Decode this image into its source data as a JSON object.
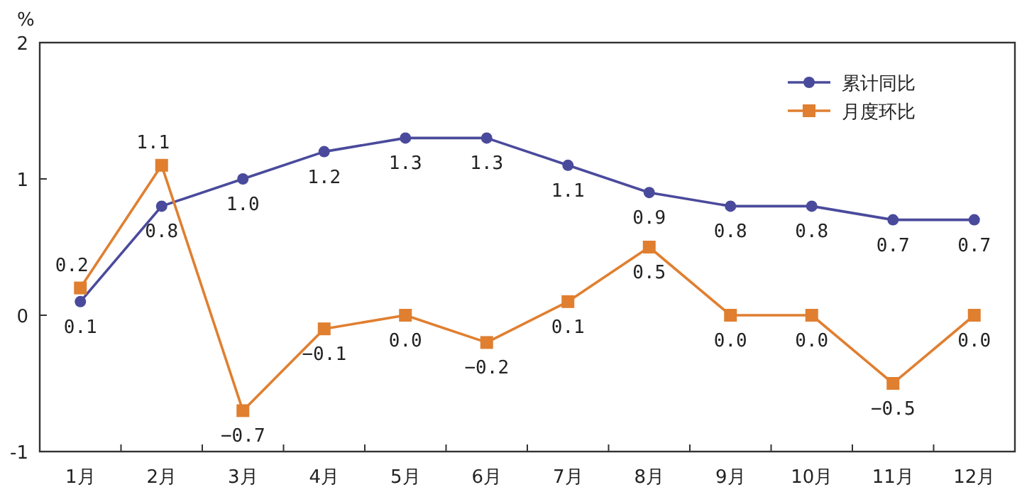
{
  "chart_data": {
    "type": "line",
    "ylabel": "%",
    "categories": [
      "1月",
      "2月",
      "3月",
      "4月",
      "5月",
      "6月",
      "7月",
      "8月",
      "9月",
      "10月",
      "11月",
      "12月"
    ],
    "series": [
      {
        "name": "累计同比",
        "color": "#4a4a9c",
        "marker": "circle",
        "values": [
          0.1,
          0.8,
          1.0,
          1.2,
          1.3,
          1.3,
          1.1,
          0.9,
          0.8,
          0.8,
          0.7,
          0.7
        ],
        "value_labels": [
          "0.1",
          "0.8",
          "1.0",
          "1.2",
          "1.3",
          "1.3",
          "1.1",
          "0.9",
          "0.8",
          "0.8",
          "0.7",
          "0.7"
        ]
      },
      {
        "name": "月度环比",
        "color": "#e07f30",
        "marker": "square",
        "values": [
          0.2,
          1.1,
          -0.7,
          -0.1,
          0.0,
          -0.2,
          0.1,
          0.5,
          0.0,
          0.0,
          -0.5,
          0.0
        ],
        "value_labels": [
          "0.2",
          "1.1",
          "−0.7",
          "−0.1",
          "0.0",
          "−0.2",
          "0.1",
          "0.5",
          "0.0",
          "0.0",
          "−0.5",
          "0.0"
        ]
      }
    ],
    "ylim": [
      -1,
      2
    ],
    "yticks": [
      -1,
      0,
      1,
      2
    ],
    "grid": false,
    "legend": "top right"
  }
}
